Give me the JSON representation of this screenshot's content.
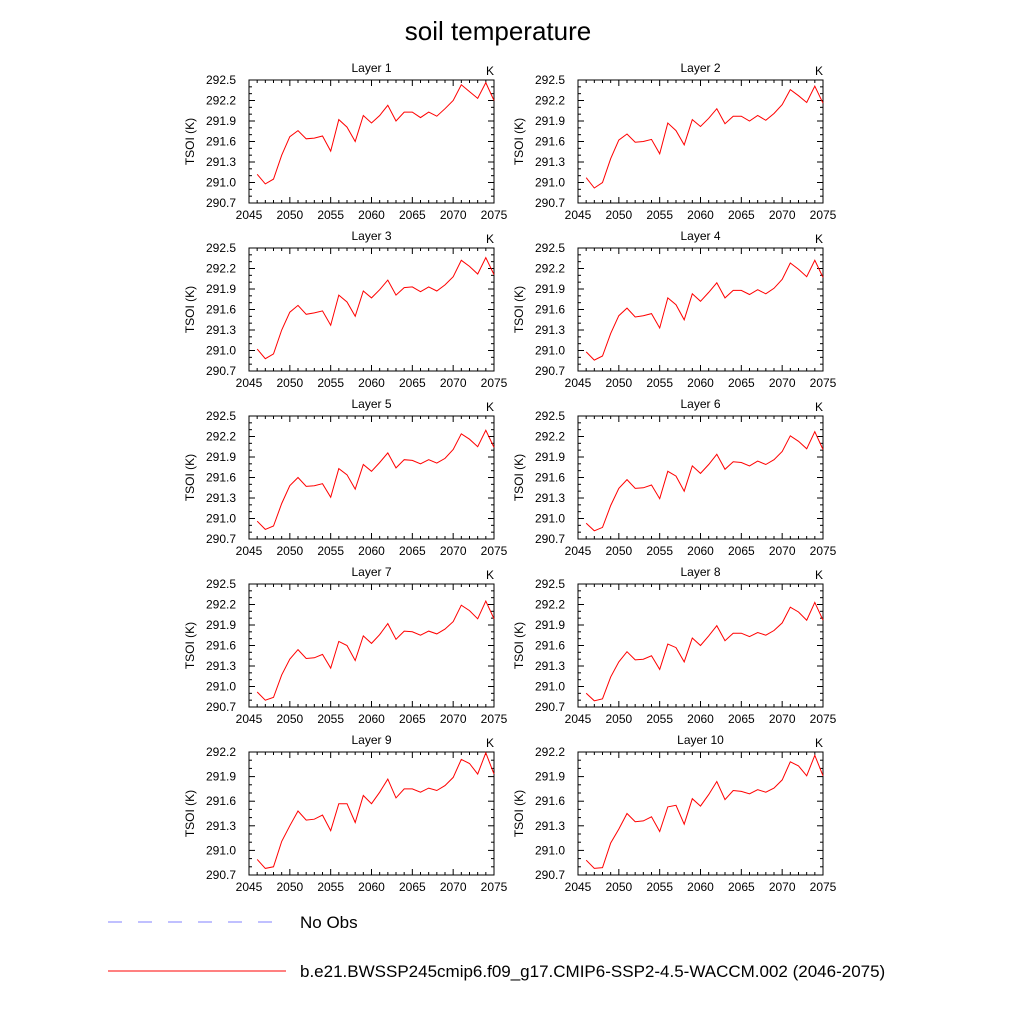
{
  "figure": {
    "title": "soil temperature"
  },
  "legend": {
    "items": [
      {
        "label": "No Obs",
        "color": "#8080ff",
        "dashed": true
      },
      {
        "label": "b.e21.BWSSP245cmip6.f09_g17.CMIP6-SSP2-4.5-WACCM.002 (2046-2075)",
        "color": "#ff0000",
        "dashed": false
      }
    ]
  },
  "chart_data": [
    {
      "type": "line",
      "title": "Layer 1",
      "units": "K",
      "ylabel": "TSOI  (K)",
      "x": [
        2046,
        2047,
        2048,
        2049,
        2050,
        2051,
        2052,
        2053,
        2054,
        2055,
        2056,
        2057,
        2058,
        2059,
        2060,
        2061,
        2062,
        2063,
        2064,
        2065,
        2066,
        2067,
        2068,
        2069,
        2070,
        2071,
        2072,
        2073,
        2074,
        2075
      ],
      "xlim": [
        2045,
        2075
      ],
      "xticks": [
        2045,
        2050,
        2055,
        2060,
        2065,
        2070,
        2075
      ],
      "ylim": [
        290.7,
        292.5
      ],
      "yticks": [
        "290.7",
        "291.0",
        "291.3",
        "291.6",
        "291.9",
        "292.2",
        "292.5"
      ],
      "series": [
        {
          "color": "#ff0000",
          "values": [
            291.12,
            290.98,
            291.05,
            291.4,
            291.67,
            291.76,
            291.64,
            291.65,
            291.68,
            291.46,
            291.92,
            291.81,
            291.6,
            291.98,
            291.87,
            291.98,
            292.13,
            291.9,
            292.03,
            292.03,
            291.95,
            292.03,
            291.97,
            292.08,
            292.2,
            292.43,
            292.33,
            292.23,
            292.46,
            292.2
          ]
        }
      ]
    },
    {
      "type": "line",
      "title": "Layer 2",
      "units": "K",
      "ylabel": "TSOI  (K)",
      "x": [
        2046,
        2047,
        2048,
        2049,
        2050,
        2051,
        2052,
        2053,
        2054,
        2055,
        2056,
        2057,
        2058,
        2059,
        2060,
        2061,
        2062,
        2063,
        2064,
        2065,
        2066,
        2067,
        2068,
        2069,
        2070,
        2071,
        2072,
        2073,
        2074,
        2075
      ],
      "xlim": [
        2045,
        2075
      ],
      "xticks": [
        2045,
        2050,
        2055,
        2060,
        2065,
        2070,
        2075
      ],
      "ylim": [
        290.7,
        292.5
      ],
      "yticks": [
        "290.7",
        "291.0",
        "291.3",
        "291.6",
        "291.9",
        "292.2",
        "292.5"
      ],
      "series": [
        {
          "color": "#ff0000",
          "values": [
            291.07,
            290.92,
            291.0,
            291.35,
            291.62,
            291.71,
            291.59,
            291.6,
            291.63,
            291.42,
            291.87,
            291.76,
            291.55,
            291.92,
            291.82,
            291.94,
            292.08,
            291.86,
            291.97,
            291.97,
            291.9,
            291.98,
            291.91,
            292.01,
            292.14,
            292.36,
            292.27,
            292.17,
            292.41,
            292.16
          ]
        }
      ]
    },
    {
      "type": "line",
      "title": "Layer 3",
      "units": "K",
      "ylabel": "TSOI  (K)",
      "x": [
        2046,
        2047,
        2048,
        2049,
        2050,
        2051,
        2052,
        2053,
        2054,
        2055,
        2056,
        2057,
        2058,
        2059,
        2060,
        2061,
        2062,
        2063,
        2064,
        2065,
        2066,
        2067,
        2068,
        2069,
        2070,
        2071,
        2072,
        2073,
        2074,
        2075
      ],
      "xlim": [
        2045,
        2075
      ],
      "xticks": [
        2045,
        2050,
        2055,
        2060,
        2065,
        2070,
        2075
      ],
      "ylim": [
        290.7,
        292.5
      ],
      "yticks": [
        "290.7",
        "291.0",
        "291.3",
        "291.6",
        "291.9",
        "292.2",
        "292.5"
      ],
      "series": [
        {
          "color": "#ff0000",
          "values": [
            291.02,
            290.88,
            290.95,
            291.3,
            291.56,
            291.66,
            291.53,
            291.55,
            291.58,
            291.37,
            291.81,
            291.71,
            291.5,
            291.87,
            291.77,
            291.89,
            292.03,
            291.81,
            291.92,
            291.93,
            291.86,
            291.93,
            291.87,
            291.96,
            292.08,
            292.32,
            292.23,
            292.12,
            292.36,
            292.11
          ]
        }
      ]
    },
    {
      "type": "line",
      "title": "Layer 4",
      "units": "K",
      "ylabel": "TSOI  (K)",
      "x": [
        2046,
        2047,
        2048,
        2049,
        2050,
        2051,
        2052,
        2053,
        2054,
        2055,
        2056,
        2057,
        2058,
        2059,
        2060,
        2061,
        2062,
        2063,
        2064,
        2065,
        2066,
        2067,
        2068,
        2069,
        2070,
        2071,
        2072,
        2073,
        2074,
        2075
      ],
      "xlim": [
        2045,
        2075
      ],
      "xticks": [
        2045,
        2050,
        2055,
        2060,
        2065,
        2070,
        2075
      ],
      "ylim": [
        290.7,
        292.5
      ],
      "yticks": [
        "290.7",
        "291.0",
        "291.3",
        "291.6",
        "291.9",
        "292.2",
        "292.5"
      ],
      "series": [
        {
          "color": "#ff0000",
          "values": [
            290.98,
            290.86,
            290.92,
            291.25,
            291.51,
            291.62,
            291.49,
            291.51,
            291.54,
            291.33,
            291.77,
            291.67,
            291.45,
            291.83,
            291.72,
            291.85,
            291.99,
            291.77,
            291.88,
            291.88,
            291.82,
            291.89,
            291.83,
            291.91,
            292.04,
            292.28,
            292.19,
            292.08,
            292.32,
            292.07
          ]
        }
      ]
    },
    {
      "type": "line",
      "title": "Layer 5",
      "units": "K",
      "ylabel": "TSOI  (K)",
      "x": [
        2046,
        2047,
        2048,
        2049,
        2050,
        2051,
        2052,
        2053,
        2054,
        2055,
        2056,
        2057,
        2058,
        2059,
        2060,
        2061,
        2062,
        2063,
        2064,
        2065,
        2066,
        2067,
        2068,
        2069,
        2070,
        2071,
        2072,
        2073,
        2074,
        2075
      ],
      "xlim": [
        2045,
        2075
      ],
      "xticks": [
        2045,
        2050,
        2055,
        2060,
        2065,
        2070,
        2075
      ],
      "ylim": [
        290.7,
        292.5
      ],
      "yticks": [
        "290.7",
        "291.0",
        "291.3",
        "291.6",
        "291.9",
        "292.2",
        "292.5"
      ],
      "series": [
        {
          "color": "#ff0000",
          "values": [
            290.96,
            290.84,
            290.89,
            291.22,
            291.48,
            291.6,
            291.47,
            291.48,
            291.51,
            291.31,
            291.73,
            291.64,
            291.43,
            291.79,
            291.69,
            291.82,
            291.96,
            291.74,
            291.86,
            291.85,
            291.8,
            291.86,
            291.81,
            291.88,
            292.01,
            292.24,
            292.16,
            292.05,
            292.29,
            292.04
          ]
        }
      ]
    },
    {
      "type": "line",
      "title": "Layer 6",
      "units": "K",
      "ylabel": "TSOI  (K)",
      "x": [
        2046,
        2047,
        2048,
        2049,
        2050,
        2051,
        2052,
        2053,
        2054,
        2055,
        2056,
        2057,
        2058,
        2059,
        2060,
        2061,
        2062,
        2063,
        2064,
        2065,
        2066,
        2067,
        2068,
        2069,
        2070,
        2071,
        2072,
        2073,
        2074,
        2075
      ],
      "xlim": [
        2045,
        2075
      ],
      "xticks": [
        2045,
        2050,
        2055,
        2060,
        2065,
        2070,
        2075
      ],
      "ylim": [
        290.7,
        292.5
      ],
      "yticks": [
        "290.7",
        "291.0",
        "291.3",
        "291.6",
        "291.9",
        "292.2",
        "292.5"
      ],
      "series": [
        {
          "color": "#ff0000",
          "values": [
            290.93,
            290.82,
            290.87,
            291.19,
            291.44,
            291.57,
            291.44,
            291.45,
            291.49,
            291.29,
            291.69,
            291.62,
            291.4,
            291.77,
            291.66,
            291.79,
            291.94,
            291.72,
            291.83,
            291.82,
            291.77,
            291.84,
            291.79,
            291.86,
            291.98,
            292.21,
            292.13,
            292.02,
            292.27,
            292.01
          ]
        }
      ]
    },
    {
      "type": "line",
      "title": "Layer 7",
      "units": "K",
      "ylabel": "TSOI  (K)",
      "x": [
        2046,
        2047,
        2048,
        2049,
        2050,
        2051,
        2052,
        2053,
        2054,
        2055,
        2056,
        2057,
        2058,
        2059,
        2060,
        2061,
        2062,
        2063,
        2064,
        2065,
        2066,
        2067,
        2068,
        2069,
        2070,
        2071,
        2072,
        2073,
        2074,
        2075
      ],
      "xlim": [
        2045,
        2075
      ],
      "xticks": [
        2045,
        2050,
        2055,
        2060,
        2065,
        2070,
        2075
      ],
      "ylim": [
        290.7,
        292.5
      ],
      "yticks": [
        "290.7",
        "291.0",
        "291.3",
        "291.6",
        "291.9",
        "292.2",
        "292.5"
      ],
      "series": [
        {
          "color": "#ff0000",
          "values": [
            290.92,
            290.8,
            290.84,
            291.17,
            291.4,
            291.54,
            291.41,
            291.42,
            291.47,
            291.27,
            291.66,
            291.6,
            291.38,
            291.74,
            291.63,
            291.76,
            291.92,
            291.69,
            291.81,
            291.8,
            291.75,
            291.81,
            291.77,
            291.84,
            291.95,
            292.19,
            292.11,
            291.99,
            292.25,
            291.99
          ]
        }
      ]
    },
    {
      "type": "line",
      "title": "Layer 8",
      "units": "K",
      "ylabel": "TSOI  (K)",
      "x": [
        2046,
        2047,
        2048,
        2049,
        2050,
        2051,
        2052,
        2053,
        2054,
        2055,
        2056,
        2057,
        2058,
        2059,
        2060,
        2061,
        2062,
        2063,
        2064,
        2065,
        2066,
        2067,
        2068,
        2069,
        2070,
        2071,
        2072,
        2073,
        2074,
        2075
      ],
      "xlim": [
        2045,
        2075
      ],
      "xticks": [
        2045,
        2050,
        2055,
        2060,
        2065,
        2070,
        2075
      ],
      "ylim": [
        290.7,
        292.5
      ],
      "yticks": [
        "290.7",
        "291.0",
        "291.3",
        "291.6",
        "291.9",
        "292.2",
        "292.5"
      ],
      "series": [
        {
          "color": "#ff0000",
          "values": [
            290.9,
            290.79,
            290.82,
            291.14,
            291.36,
            291.51,
            291.39,
            291.4,
            291.45,
            291.25,
            291.62,
            291.57,
            291.36,
            291.71,
            291.6,
            291.74,
            291.89,
            291.67,
            291.78,
            291.78,
            291.73,
            291.79,
            291.75,
            291.82,
            291.93,
            292.16,
            292.09,
            291.97,
            292.23,
            291.97
          ]
        }
      ]
    },
    {
      "type": "line",
      "title": "Layer 9",
      "units": "K",
      "ylabel": "TSOI  (K)",
      "x": [
        2046,
        2047,
        2048,
        2049,
        2050,
        2051,
        2052,
        2053,
        2054,
        2055,
        2056,
        2057,
        2058,
        2059,
        2060,
        2061,
        2062,
        2063,
        2064,
        2065,
        2066,
        2067,
        2068,
        2069,
        2070,
        2071,
        2072,
        2073,
        2074,
        2075
      ],
      "xlim": [
        2045,
        2075
      ],
      "xticks": [
        2045,
        2050,
        2055,
        2060,
        2065,
        2070,
        2075
      ],
      "ylim": [
        290.7,
        292.2
      ],
      "yticks": [
        "290.7",
        "291.0",
        "291.3",
        "291.6",
        "291.9",
        "292.2"
      ],
      "series": [
        {
          "color": "#ff0000",
          "values": [
            290.89,
            290.78,
            290.8,
            291.11,
            291.3,
            291.48,
            291.37,
            291.38,
            291.43,
            291.24,
            291.57,
            291.57,
            291.34,
            291.67,
            291.57,
            291.71,
            291.87,
            291.64,
            291.75,
            291.75,
            291.71,
            291.76,
            291.73,
            291.79,
            291.89,
            292.11,
            292.06,
            291.93,
            292.19,
            291.93
          ]
        }
      ]
    },
    {
      "type": "line",
      "title": "Layer 10",
      "units": "K",
      "ylabel": "TSOI  (K)",
      "x": [
        2046,
        2047,
        2048,
        2049,
        2050,
        2051,
        2052,
        2053,
        2054,
        2055,
        2056,
        2057,
        2058,
        2059,
        2060,
        2061,
        2062,
        2063,
        2064,
        2065,
        2066,
        2067,
        2068,
        2069,
        2070,
        2071,
        2072,
        2073,
        2074,
        2075
      ],
      "xlim": [
        2045,
        2075
      ],
      "xticks": [
        2045,
        2050,
        2055,
        2060,
        2065,
        2070,
        2075
      ],
      "ylim": [
        290.7,
        292.2
      ],
      "yticks": [
        "290.7",
        "291.0",
        "291.3",
        "291.6",
        "291.9",
        "292.2"
      ],
      "series": [
        {
          "color": "#ff0000",
          "values": [
            290.88,
            290.78,
            290.79,
            291.09,
            291.26,
            291.45,
            291.35,
            291.36,
            291.41,
            291.23,
            291.53,
            291.55,
            291.32,
            291.63,
            291.54,
            291.68,
            291.84,
            291.62,
            291.73,
            291.72,
            291.69,
            291.74,
            291.71,
            291.76,
            291.86,
            292.08,
            292.03,
            291.91,
            292.16,
            291.91
          ]
        }
      ]
    }
  ]
}
